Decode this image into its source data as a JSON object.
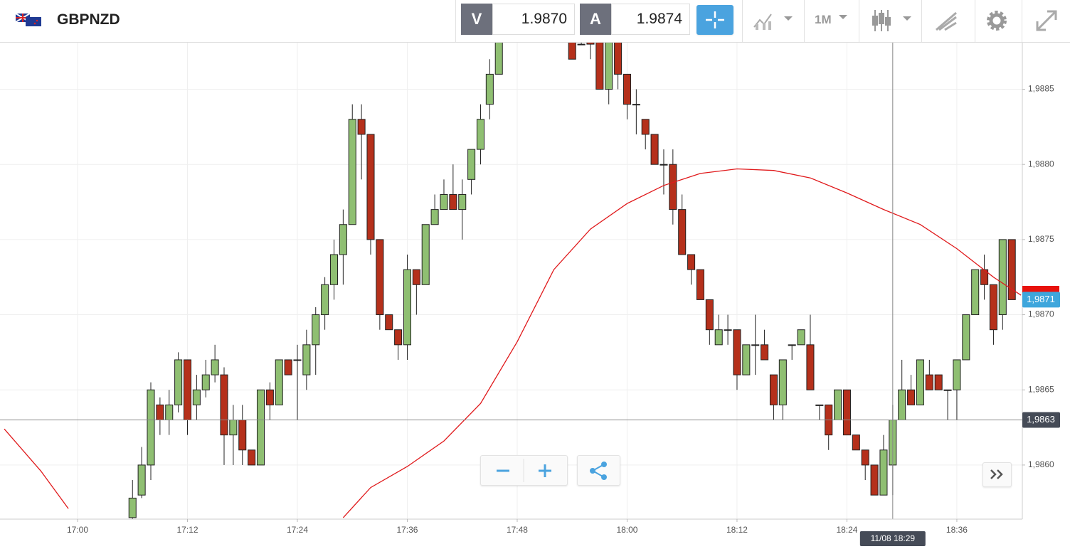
{
  "toolbar": {
    "symbol": "GBPNZD",
    "sell_label": "V",
    "sell_price": "1.9870",
    "buy_label": "A",
    "buy_price": "1.9874",
    "interval": "1M"
  },
  "chart_data": {
    "type": "candlestick",
    "x": [
      "17:06",
      "17:07",
      "17:08",
      "17:09",
      "17:10",
      "17:11",
      "17:12",
      "17:13",
      "17:14",
      "17:15",
      "17:16",
      "17:17",
      "17:18",
      "17:19",
      "17:20",
      "17:21",
      "17:22",
      "17:23",
      "17:24",
      "17:25",
      "17:26",
      "17:27",
      "17:28",
      "17:29",
      "17:30",
      "17:31",
      "17:32",
      "17:33",
      "17:34",
      "17:35",
      "17:36",
      "17:37",
      "17:38",
      "17:39",
      "17:40",
      "17:41",
      "17:42",
      "17:43",
      "17:44",
      "17:45",
      "17:46",
      "17:54",
      "17:55",
      "17:56",
      "17:57",
      "17:58",
      "17:59",
      "18:00",
      "18:01",
      "18:02",
      "18:03",
      "18:04",
      "18:05",
      "18:06",
      "18:07",
      "18:08",
      "18:09",
      "18:10",
      "18:11",
      "18:12",
      "18:13",
      "18:14",
      "18:15",
      "18:16",
      "18:17",
      "18:18",
      "18:19",
      "18:20",
      "18:21",
      "18:22",
      "18:23",
      "18:24",
      "18:25",
      "18:26",
      "18:27",
      "18:28",
      "18:29",
      "18:30",
      "18:31",
      "18:32",
      "18:33",
      "18:34",
      "18:35",
      "18:36",
      "18:37",
      "18:38",
      "18:39",
      "18:40",
      "18:41",
      "18:42"
    ],
    "open": [
      1.98565,
      1.9858,
      1.986,
      1.9864,
      1.9863,
      1.9864,
      1.9867,
      1.9864,
      1.9865,
      1.9866,
      1.9866,
      1.9862,
      1.9863,
      1.9861,
      1.986,
      1.9865,
      1.9864,
      1.9867,
      1.9867,
      1.9866,
      1.9868,
      1.987,
      1.9872,
      1.9874,
      1.9876,
      1.9883,
      1.9882,
      1.9875,
      1.987,
      1.9869,
      1.9868,
      1.9873,
      1.9872,
      1.9876,
      1.9877,
      1.9878,
      1.9877,
      1.9879,
      1.9881,
      1.9884,
      1.9886,
      1.9889,
      1.9888,
      1.98885,
      1.9889,
      1.9885,
      1.9889,
      1.9886,
      1.9884,
      1.9883,
      1.9882,
      1.988,
      1.988,
      1.9877,
      1.9874,
      1.9873,
      1.9871,
      1.9868,
      1.9869,
      1.9869,
      1.9866,
      1.9868,
      1.9868,
      1.9866,
      1.9864,
      1.9868,
      1.9868,
      1.9868,
      1.9864,
      1.9864,
      1.9863,
      1.9865,
      1.9862,
      1.9861,
      1.986,
      1.9858,
      1.986,
      1.9863,
      1.9865,
      1.9864,
      1.9866,
      1.9866,
      1.9865,
      1.9865,
      1.9867,
      1.987,
      1.9873,
      1.9872,
      1.987,
      1.9875
    ],
    "high": [
      1.9859,
      1.98612,
      1.98655,
      1.98645,
      1.9865,
      1.98675,
      1.9867,
      1.9866,
      1.9867,
      1.9868,
      1.98665,
      1.9864,
      1.9864,
      1.9861,
      1.9865,
      1.98655,
      1.9867,
      1.9867,
      1.9868,
      1.9869,
      1.98705,
      1.98725,
      1.9875,
      1.9877,
      1.9884,
      1.9884,
      1.9882,
      1.9875,
      1.987,
      1.9869,
      1.9874,
      1.9873,
      1.9876,
      1.9878,
      1.9879,
      1.988,
      1.9879,
      1.9881,
      1.9884,
      1.9887,
      1.9889,
      1.98895,
      1.9889,
      1.9889,
      1.98895,
      1.98895,
      1.98895,
      1.9886,
      1.9885,
      1.9883,
      1.9882,
      1.9881,
      1.9881,
      1.9878,
      1.9874,
      1.9873,
      1.9871,
      1.987,
      1.987,
      1.9869,
      1.9868,
      1.987,
      1.9869,
      1.9866,
      1.9867,
      1.9868,
      1.9869,
      1.987,
      1.9864,
      1.9864,
      1.9865,
      1.9865,
      1.9862,
      1.9861,
      1.986,
      1.9862,
      1.9864,
      1.9867,
      1.9866,
      1.9867,
      1.9867,
      1.9866,
      1.9865,
      1.9867,
      1.987,
      1.9873,
      1.9874,
      1.9872,
      1.9875,
      1.9875
    ],
    "low": [
      1.9856,
      1.98578,
      1.9859,
      1.9862,
      1.9862,
      1.98635,
      1.9862,
      1.9863,
      1.98645,
      1.98655,
      1.986,
      1.986,
      1.986,
      1.986,
      1.986,
      1.9863,
      1.9864,
      1.9866,
      1.9863,
      1.9865,
      1.9866,
      1.9869,
      1.9871,
      1.9872,
      1.9876,
      1.9879,
      1.9874,
      1.9869,
      1.9869,
      1.9867,
      1.9867,
      1.987,
      1.9872,
      1.9876,
      1.9877,
      1.9877,
      1.9875,
      1.9878,
      1.988,
      1.9883,
      1.9886,
      1.9887,
      1.9888,
      1.9887,
      1.9885,
      1.9884,
      1.9885,
      1.9883,
      1.9882,
      1.9881,
      1.988,
      1.9878,
      1.9876,
      1.9874,
      1.9872,
      1.9871,
      1.9868,
      1.9868,
      1.9868,
      1.9865,
      1.9866,
      1.9866,
      1.9867,
      1.9863,
      1.9863,
      1.9867,
      1.9868,
      1.9865,
      1.9863,
      1.9861,
      1.9863,
      1.9862,
      1.9861,
      1.9859,
      1.9858,
      1.9858,
      1.9858,
      1.9863,
      1.9864,
      1.9864,
      1.9865,
      1.9865,
      1.9863,
      1.9863,
      1.9867,
      1.987,
      1.9871,
      1.9868,
      1.9869,
      1.9871
    ],
    "close": [
      1.98578,
      1.986,
      1.9865,
      1.9863,
      1.9864,
      1.9867,
      1.9863,
      1.9865,
      1.9866,
      1.9867,
      1.9862,
      1.9863,
      1.9861,
      1.986,
      1.9865,
      1.9864,
      1.9867,
      1.9866,
      1.9867,
      1.9868,
      1.987,
      1.9872,
      1.9874,
      1.9876,
      1.9883,
      1.9882,
      1.9875,
      1.987,
      1.9869,
      1.9868,
      1.9873,
      1.9872,
      1.9876,
      1.9877,
      1.9878,
      1.9877,
      1.9878,
      1.9881,
      1.9883,
      1.9886,
      1.98885,
      1.9887,
      1.9888,
      1.9888,
      1.9885,
      1.9889,
      1.9886,
      1.9884,
      1.9884,
      1.9882,
      1.988,
      1.988,
      1.9877,
      1.9874,
      1.9873,
      1.9871,
      1.9869,
      1.9869,
      1.9869,
      1.9866,
      1.9868,
      1.9868,
      1.9867,
      1.9864,
      1.9867,
      1.9868,
      1.9869,
      1.9865,
      1.9864,
      1.9862,
      1.9865,
      1.9862,
      1.9861,
      1.986,
      1.9858,
      1.9861,
      1.9863,
      1.9865,
      1.9864,
      1.9867,
      1.9865,
      1.9865,
      1.9865,
      1.9867,
      1.987,
      1.9873,
      1.9872,
      1.9869,
      1.9875,
      1.9871
    ],
    "up_color": "#8fbf72",
    "down_color": "#b5301b",
    "lines": [
      {
        "color": "#e0191b",
        "x": [
          "16:52",
          "16:56",
          "16:59",
          "17:10",
          "17:29",
          "17:32",
          "17:36",
          "17:40",
          "17:44",
          "17:48",
          "17:52",
          "17:56",
          "18:00",
          "18:04",
          "18:08",
          "18:12",
          "18:16",
          "18:20",
          "18:24",
          "18:28",
          "18:32",
          "18:36",
          "18:40",
          "18:43"
        ],
        "values": [
          1.98624,
          1.98596,
          1.98571,
          null,
          1.98565,
          1.98585,
          1.98599,
          1.98616,
          1.98641,
          1.98682,
          1.9873,
          1.98757,
          1.98774,
          1.98786,
          1.98794,
          1.98797,
          1.98796,
          1.98791,
          1.98781,
          1.9877,
          1.9876,
          1.98744,
          1.98725,
          1.98713
        ]
      }
    ],
    "xlim": [
      "16:51:32",
      "18:43:09"
    ],
    "xticks": [
      "17:00",
      "17:12",
      "17:24",
      "17:36",
      "17:48",
      "18:00",
      "18:12",
      "18:24",
      "18:36"
    ],
    "ylim": [
      1.98564,
      1.98881
    ],
    "yticks": [
      {
        "value": 1.986,
        "label": "1,9860"
      },
      {
        "value": 1.9865,
        "label": "1,9865"
      },
      {
        "value": 1.987,
        "label": "1,9870"
      },
      {
        "value": 1.9875,
        "label": "1,9875"
      },
      {
        "value": 1.988,
        "label": "1,9880"
      },
      {
        "value": 1.9885,
        "label": "1,9885"
      }
    ],
    "grid": true,
    "last_price": {
      "value": 1.9871,
      "label": "1,9871"
    },
    "crosshair": {
      "y": {
        "value": 1.9863,
        "label": "1,9863"
      },
      "x": {
        "value": "18:29",
        "label": "11/08 18:29"
      }
    }
  }
}
